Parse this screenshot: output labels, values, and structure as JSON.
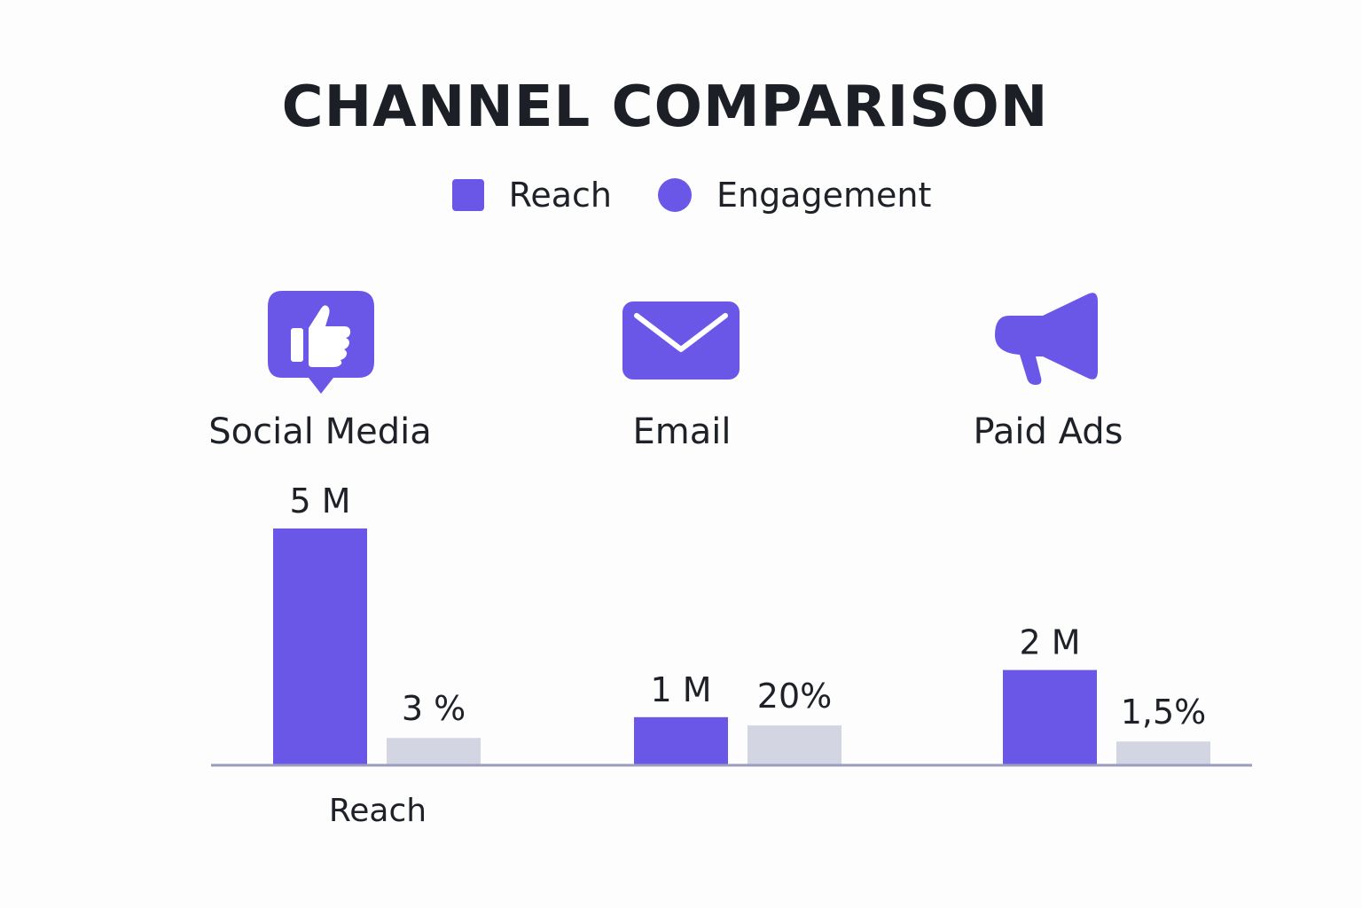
{
  "chart_data": {
    "type": "bar",
    "title": "CHANNEL COMPARISON",
    "xlabel": "Reach",
    "categories": [
      "Social Media",
      "Email",
      "Paid Ads"
    ],
    "series": [
      {
        "name": "Reach",
        "values": [
          5000000,
          1000000,
          2000000
        ],
        "labels": [
          "5 M",
          "1 M",
          "2 M"
        ],
        "color": "#6a57e8"
      },
      {
        "name": "Engagement",
        "values": [
          3,
          20,
          1.5
        ],
        "labels": [
          "3 %",
          "20%",
          "1,5%"
        ],
        "color": "#d3d6e2"
      }
    ],
    "legend": {
      "position": "top-center",
      "reach_label": "Reach",
      "engagement_label": "Engagement"
    },
    "grid": false
  },
  "icons": [
    "thumbs-up-icon",
    "envelope-icon",
    "megaphone-icon"
  ],
  "colors": {
    "accent": "#6a57e8",
    "engagement_bar": "#d3d6e2",
    "baseline": "#9a9cbc",
    "text": "#1e2228"
  }
}
